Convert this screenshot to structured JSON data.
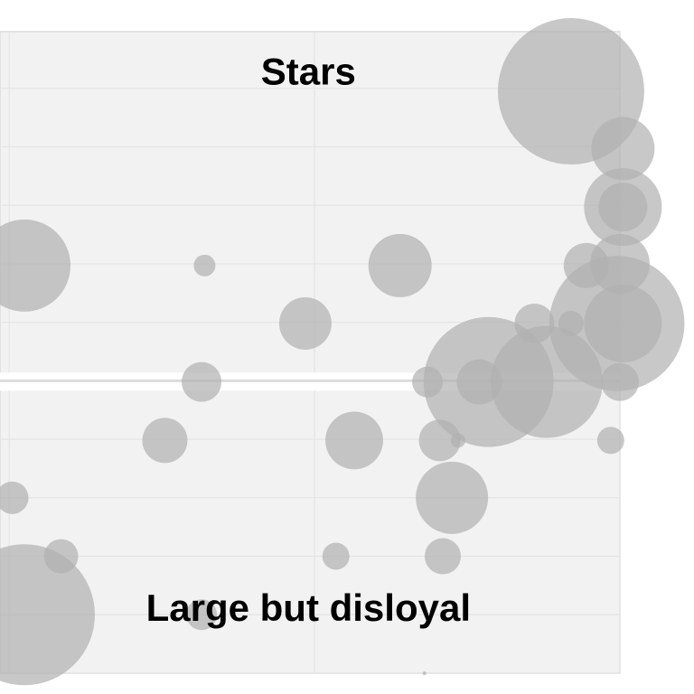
{
  "chart_data": {
    "type": "scatter",
    "variant": "bubble",
    "title": "",
    "xlabel": "",
    "ylabel": "",
    "xlim": [
      -0.03,
      2.0
    ],
    "ylim": [
      0,
      10.97
    ],
    "x_gridlines": [
      0,
      1,
      2
    ],
    "y_gridlines": [
      0,
      1,
      2,
      3,
      4,
      5,
      6,
      7,
      8,
      9,
      10
    ],
    "reference_line_y": 5,
    "grid": true,
    "legend": "none",
    "colors": {
      "bubble": "#b0b0b0",
      "panel": "#f2f2f2",
      "grid": "#e4e4e4",
      "reference_band": "#ffffff"
    },
    "annotations": [
      {
        "text": "Stars",
        "x": 0.98,
        "y": 10.3
      },
      {
        "text": "Large but disloyal",
        "x": 0.98,
        "y": 1.13
      }
    ],
    "points": [
      {
        "x": 1.84,
        "y": 9.95,
        "size": 65.6
      },
      {
        "x": 2.01,
        "y": 8.97,
        "size": 12.25
      },
      {
        "x": 2.01,
        "y": 7.97,
        "size": 18.5
      },
      {
        "x": 2.01,
        "y": 7.97,
        "size": 7.3
      },
      {
        "x": 0.05,
        "y": 6.97,
        "size": 26
      },
      {
        "x": 0.64,
        "y": 6.97,
        "size": 1.44
      },
      {
        "x": 1.28,
        "y": 6.97,
        "size": 12.25
      },
      {
        "x": 1.89,
        "y": 6.97,
        "size": 6.25
      },
      {
        "x": 2.0,
        "y": 7.0,
        "size": 10.9
      },
      {
        "x": 0.97,
        "y": 5.98,
        "size": 8.4
      },
      {
        "x": 1.72,
        "y": 5.98,
        "size": 4.84
      },
      {
        "x": 1.84,
        "y": 5.98,
        "size": 1.96
      },
      {
        "x": 1.99,
        "y": 5.98,
        "size": 56
      },
      {
        "x": 2.01,
        "y": 5.98,
        "size": 18.5
      },
      {
        "x": 1.57,
        "y": 4.98,
        "size": 51.8
      },
      {
        "x": 1.76,
        "y": 4.98,
        "size": 38.4
      },
      {
        "x": 1.37,
        "y": 4.98,
        "size": 2.9
      },
      {
        "x": 1.54,
        "y": 4.98,
        "size": 6.25
      },
      {
        "x": 2.0,
        "y": 4.98,
        "size": 4.4
      },
      {
        "x": 0.63,
        "y": 4.98,
        "size": 4.84
      },
      {
        "x": 0.51,
        "y": 3.98,
        "size": 6.25
      },
      {
        "x": 1.13,
        "y": 3.98,
        "size": 10.2
      },
      {
        "x": 1.41,
        "y": 3.98,
        "size": 5.3
      },
      {
        "x": 1.47,
        "y": 3.98,
        "size": 0.64
      },
      {
        "x": 1.97,
        "y": 3.98,
        "size": 2.25
      },
      {
        "x": 0.01,
        "y": 3.0,
        "size": 3.24
      },
      {
        "x": 1.45,
        "y": 3.0,
        "size": 16
      },
      {
        "x": 0.17,
        "y": 2.0,
        "size": 3.6
      },
      {
        "x": 1.07,
        "y": 2.0,
        "size": 2.25
      },
      {
        "x": 1.42,
        "y": 2.0,
        "size": 4
      },
      {
        "x": 0.05,
        "y": 1.0,
        "size": 60.8
      },
      {
        "x": 0.63,
        "y": 1.0,
        "size": 2.9
      },
      {
        "x": 1.36,
        "y": 0.0,
        "size": 0.04
      }
    ]
  }
}
